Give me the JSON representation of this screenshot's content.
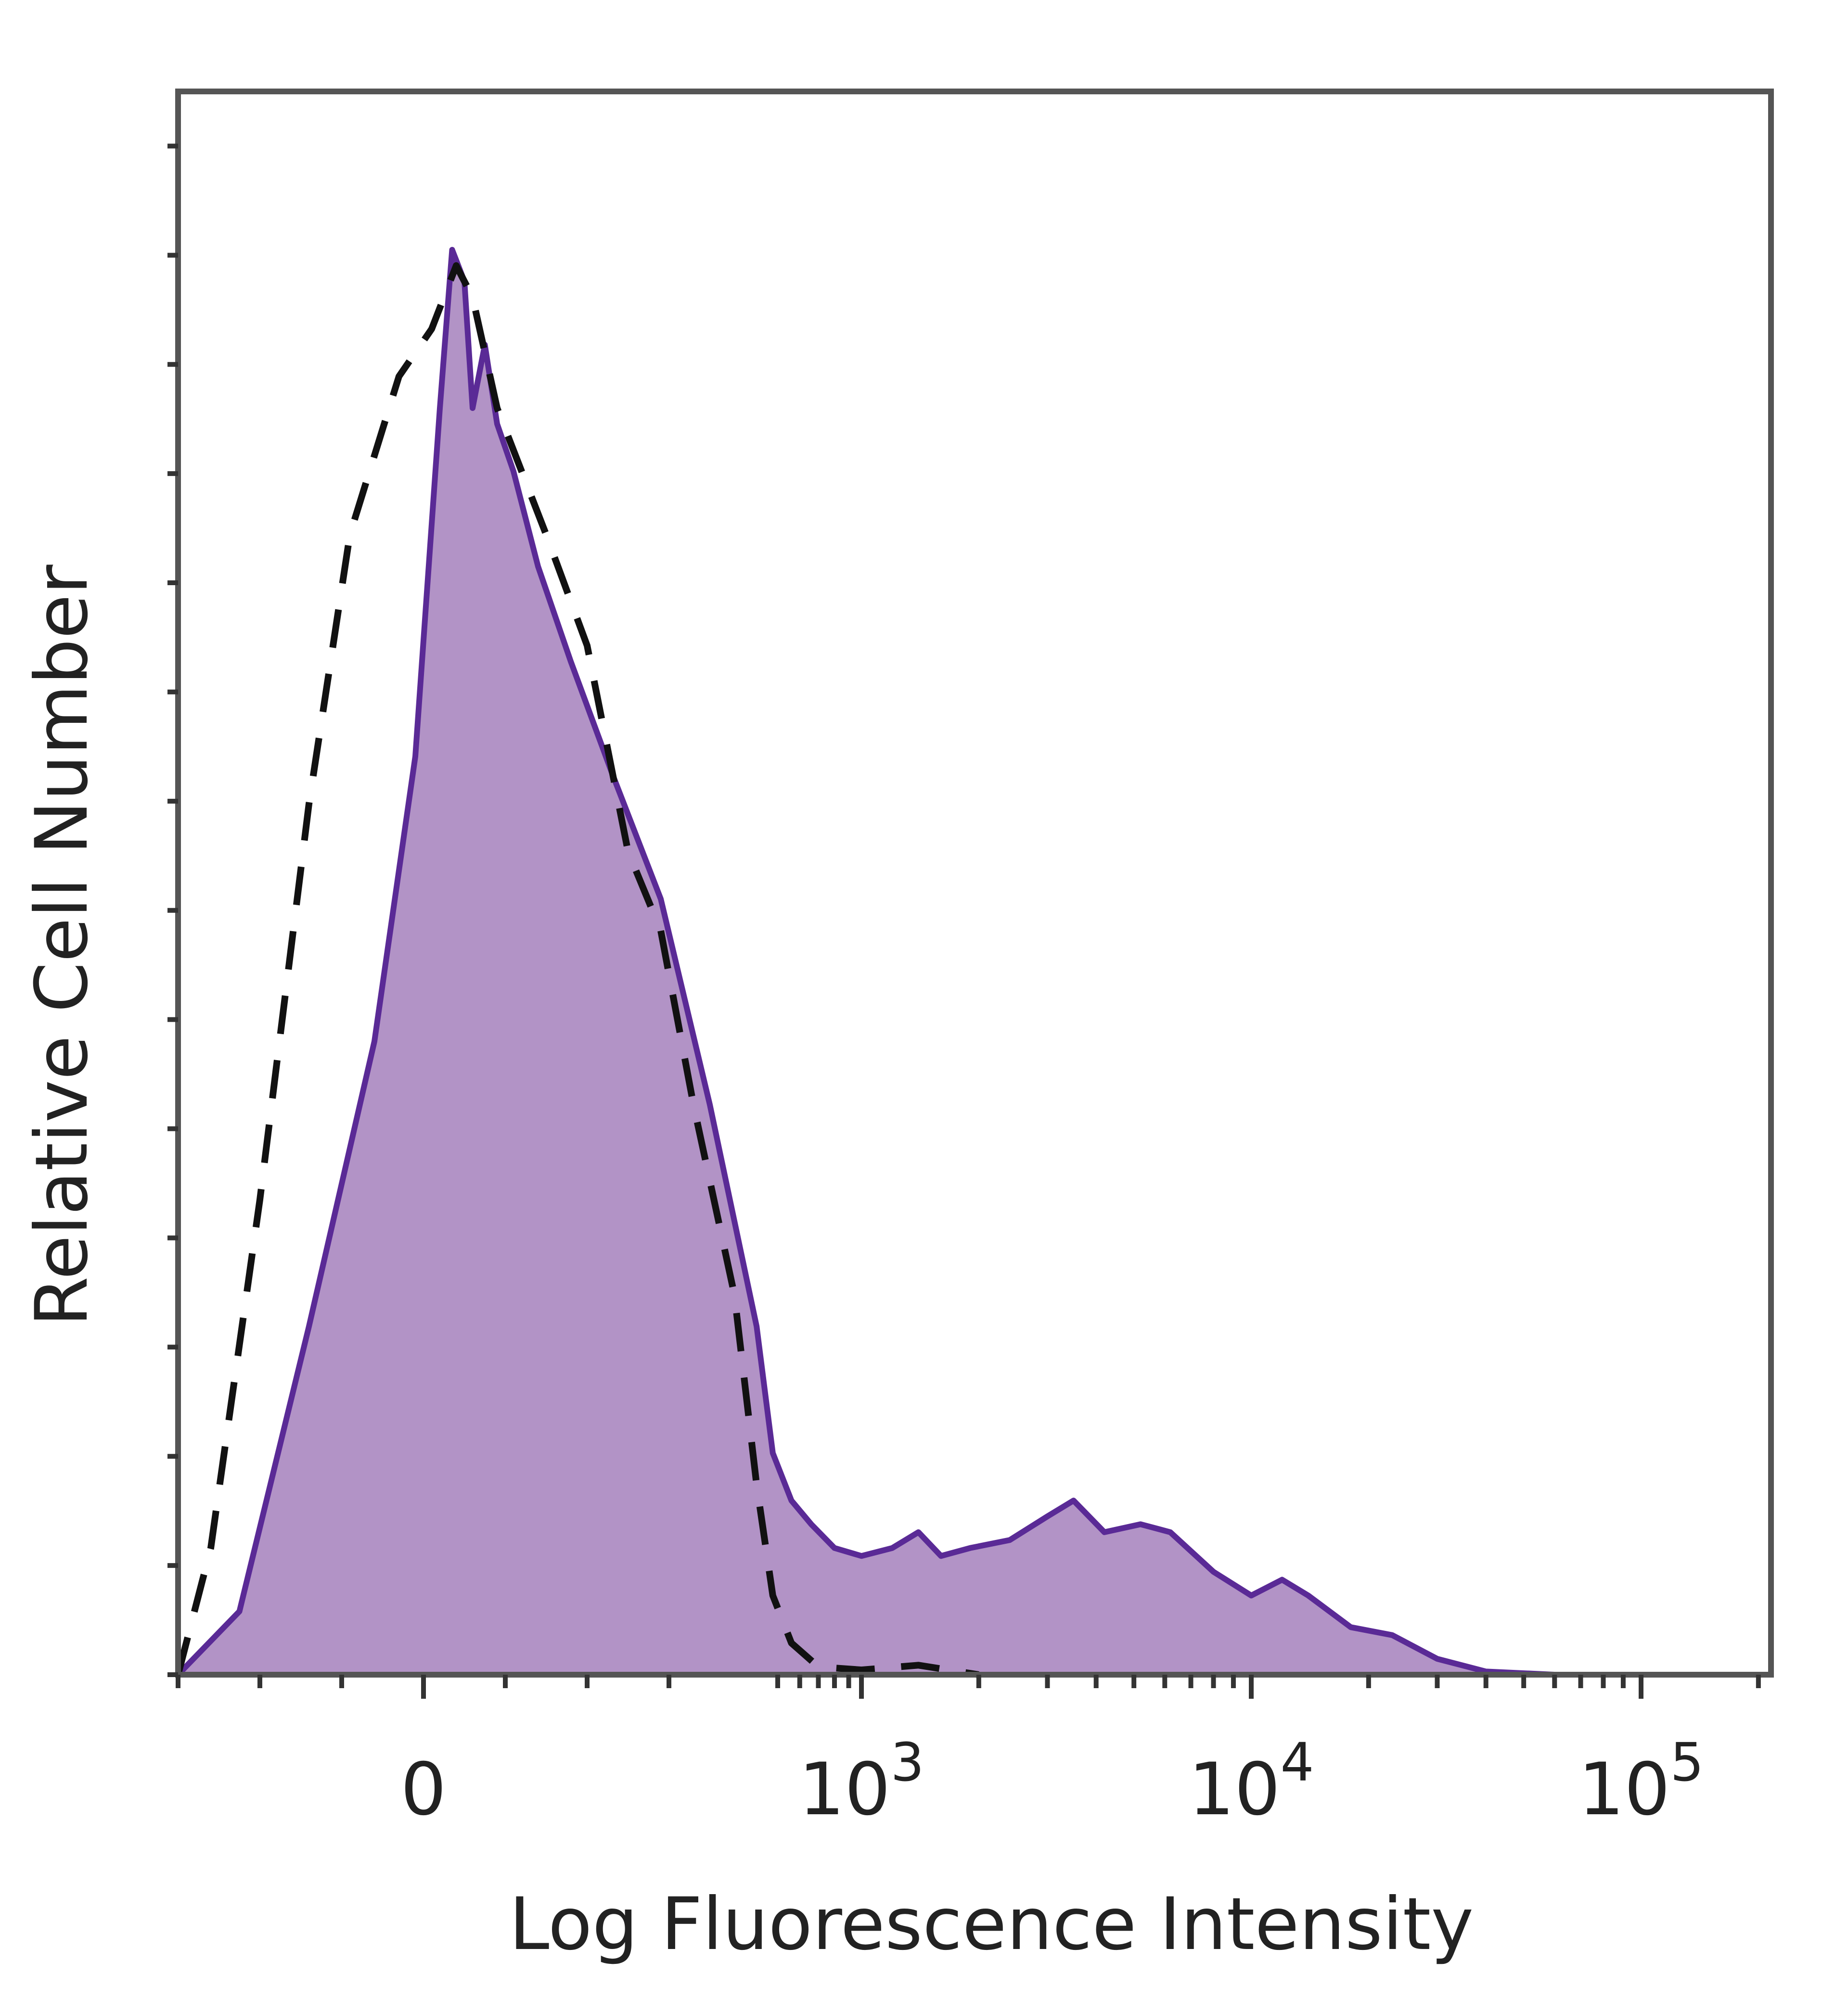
{
  "chart_data": {
    "type": "area",
    "title": "",
    "xlabel": "Log Fluorescence Intensity",
    "ylabel": "Relative Cell Number",
    "x_scale": "biexponential",
    "x_tick_labels": [
      {
        "value": 0,
        "base": "0",
        "exp": ""
      },
      {
        "value": 1000,
        "base": "10",
        "exp": "3"
      },
      {
        "value": 10000,
        "base": "10",
        "exp": "4"
      },
      {
        "value": 100000,
        "base": "10",
        "exp": "5"
      }
    ],
    "ylim": [
      0,
      100
    ],
    "grid": false,
    "colors": {
      "sample_fill": "#b293c6",
      "sample_line": "#5a2a96",
      "control_line": "#111111",
      "frame": "#555555"
    },
    "series": [
      {
        "style": "filled-solid",
        "points": [
          [
            -300,
            0
          ],
          [
            -225,
            4
          ],
          [
            -140,
            22
          ],
          [
            -60,
            40
          ],
          [
            -10,
            58
          ],
          [
            20,
            80
          ],
          [
            35,
            90
          ],
          [
            50,
            88
          ],
          [
            60,
            80
          ],
          [
            75,
            84
          ],
          [
            90,
            79
          ],
          [
            110,
            76
          ],
          [
            140,
            70
          ],
          [
            180,
            64
          ],
          [
            230,
            57
          ],
          [
            290,
            49
          ],
          [
            350,
            36
          ],
          [
            420,
            22
          ],
          [
            480,
            14
          ],
          [
            560,
            11
          ],
          [
            660,
            9.5
          ],
          [
            800,
            8
          ],
          [
            1000,
            7.5
          ],
          [
            1200,
            8
          ],
          [
            1400,
            9
          ],
          [
            1600,
            7.5
          ],
          [
            1900,
            8
          ],
          [
            2400,
            8.5
          ],
          [
            3000,
            10
          ],
          [
            3500,
            11
          ],
          [
            4200,
            9
          ],
          [
            5200,
            9.5
          ],
          [
            6200,
            9
          ],
          [
            8000,
            6.5
          ],
          [
            10000,
            5
          ],
          [
            12000,
            6
          ],
          [
            14000,
            5
          ],
          [
            18000,
            3
          ],
          [
            23000,
            2.5
          ],
          [
            30000,
            1
          ],
          [
            40000,
            0.2
          ],
          [
            60000,
            0
          ],
          [
            100000,
            0
          ],
          [
            200000,
            0
          ]
        ]
      },
      {
        "style": "dashed",
        "points": [
          [
            -320,
            0
          ],
          [
            -260,
            8
          ],
          [
            -200,
            30
          ],
          [
            -140,
            55
          ],
          [
            -90,
            72
          ],
          [
            -30,
            82
          ],
          [
            10,
            85
          ],
          [
            40,
            89
          ],
          [
            60,
            87
          ],
          [
            90,
            80
          ],
          [
            150,
            72
          ],
          [
            200,
            65
          ],
          [
            250,
            52
          ],
          [
            290,
            47
          ],
          [
            330,
            36
          ],
          [
            380,
            24
          ],
          [
            420,
            12
          ],
          [
            480,
            5
          ],
          [
            560,
            2
          ],
          [
            700,
            0.5
          ],
          [
            1000,
            0.3
          ],
          [
            1400,
            0.6
          ],
          [
            2000,
            0
          ]
        ]
      }
    ]
  }
}
